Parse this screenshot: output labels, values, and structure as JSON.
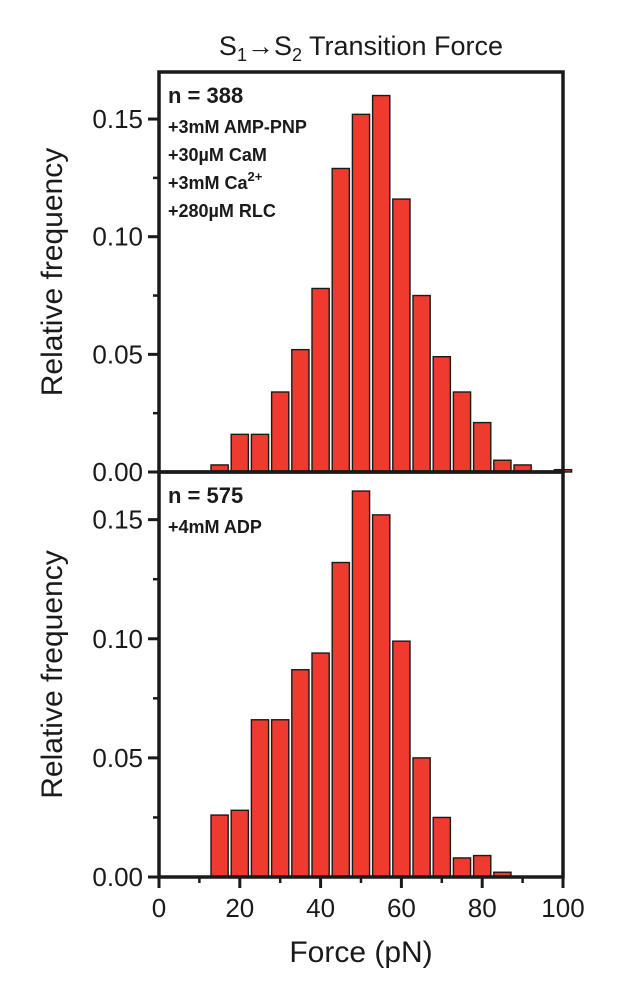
{
  "title": {
    "pre": "S",
    "sub1": "1",
    "arrow": "→",
    "mid": "S",
    "sub2": "2",
    "post": " Transition Force"
  },
  "xlabel": "Force (pN)",
  "bar_color": "#ee3a2f",
  "chart_data": [
    {
      "type": "bar",
      "ylabel": "Relative frequency",
      "xlim": [
        0,
        100
      ],
      "ylim": [
        0,
        0.17
      ],
      "xticks": [
        "0",
        "20",
        "40",
        "60",
        "80",
        "100"
      ],
      "yticks": [
        "0.00",
        "0.05",
        "0.10",
        "0.15"
      ],
      "bin_width": 5,
      "x": [
        15,
        20,
        25,
        30,
        35,
        40,
        45,
        50,
        55,
        60,
        65,
        70,
        75,
        80,
        85,
        90,
        95,
        100
      ],
      "values": [
        0.003,
        0.016,
        0.016,
        0.034,
        0.052,
        0.078,
        0.129,
        0.152,
        0.16,
        0.116,
        0.075,
        0.049,
        0.034,
        0.021,
        0.005,
        0.003,
        0,
        0.001
      ],
      "annotations": {
        "n": "n = 388",
        "lines": [
          {
            "text": "+3mM AMP-PNP"
          },
          {
            "text": "+30µM CaM"
          },
          {
            "text": "+3mM Ca",
            "sup": "2+"
          },
          {
            "text": "+280µM RLC"
          }
        ]
      }
    },
    {
      "type": "bar",
      "ylabel": "Relative frequency",
      "xlim": [
        0,
        100
      ],
      "ylim": [
        0,
        0.17
      ],
      "xticks": [
        "0",
        "20",
        "40",
        "60",
        "80",
        "100"
      ],
      "yticks": [
        "0.00",
        "0.05",
        "0.10",
        "0.15"
      ],
      "bin_width": 5,
      "x": [
        15,
        20,
        25,
        30,
        35,
        40,
        45,
        50,
        55,
        60,
        65,
        70,
        75,
        80,
        85
      ],
      "values": [
        0.026,
        0.028,
        0.066,
        0.066,
        0.087,
        0.094,
        0.132,
        0.162,
        0.152,
        0.099,
        0.05,
        0.025,
        0.008,
        0.009,
        0.002
      ],
      "annotations": {
        "n": "n = 575",
        "lines": [
          {
            "text": "+4mM ADP"
          }
        ]
      }
    }
  ]
}
